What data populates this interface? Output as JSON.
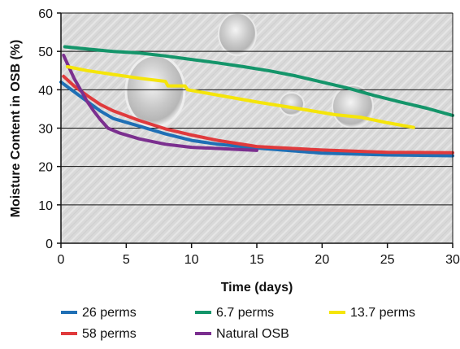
{
  "chart_data": {
    "type": "line",
    "title": "",
    "xlabel": "Time (days)",
    "ylabel": "Moisture Content in OSB (%)",
    "xlim": [
      0,
      30
    ],
    "ylim": [
      0,
      60
    ],
    "x_ticks": [
      0,
      5,
      10,
      15,
      20,
      25,
      30
    ],
    "y_ticks": [
      0,
      10,
      20,
      30,
      40,
      50,
      60
    ],
    "grid": "horizontal",
    "legend_position": "bottom",
    "background": "textured gray with water droplets",
    "series": [
      {
        "name": "26 perms",
        "color": "#1f6fb5",
        "x": [
          0,
          1,
          2,
          3,
          4,
          6,
          8,
          10,
          12,
          15,
          20,
          25,
          30
        ],
        "y": [
          42,
          39.5,
          37,
          34.5,
          32.5,
          30.5,
          28.5,
          26.8,
          25.8,
          24.8,
          23.5,
          23,
          22.8
        ]
      },
      {
        "name": "6.7 perms",
        "color": "#14956a",
        "x": [
          0.3,
          2,
          4,
          6,
          8,
          10,
          12,
          14,
          16,
          18,
          20,
          22,
          24,
          26,
          28,
          30
        ],
        "y": [
          51.2,
          50.6,
          50,
          49.6,
          48.8,
          47.9,
          47,
          46,
          44.9,
          43.6,
          42,
          40.4,
          38.5,
          36.8,
          35.2,
          33.3
        ]
      },
      {
        "name": "13.7 perms",
        "color": "#f5e50a",
        "x": [
          0.5,
          2,
          4,
          6,
          8,
          8.2,
          9.5,
          9.7,
          12,
          15,
          18,
          21,
          23,
          25,
          27
        ],
        "y": [
          46,
          45,
          44,
          43,
          42.2,
          41,
          41,
          40,
          38.6,
          36.8,
          35.2,
          33.5,
          32.8,
          31.4,
          30.2
        ]
      },
      {
        "name": "58 perms",
        "color": "#e03a3c",
        "x": [
          0.2,
          1,
          2,
          3,
          4,
          6,
          8,
          10,
          12,
          15,
          20,
          25,
          30
        ],
        "y": [
          43.5,
          41,
          38.5,
          36.2,
          34.5,
          32,
          29.8,
          28.2,
          26.8,
          25.2,
          24.3,
          23.7,
          23.6
        ]
      },
      {
        "name": "Natural OSB",
        "color": "#7b2f8f",
        "x": [
          0.2,
          0.6,
          1,
          1.5,
          2,
          2.5,
          3,
          3.6,
          4.5,
          6,
          8,
          10,
          12,
          15
        ],
        "y": [
          49,
          46,
          43,
          40,
          37,
          34.5,
          32.3,
          30,
          28.7,
          27.2,
          25.8,
          25,
          24.7,
          24.2
        ]
      }
    ]
  }
}
